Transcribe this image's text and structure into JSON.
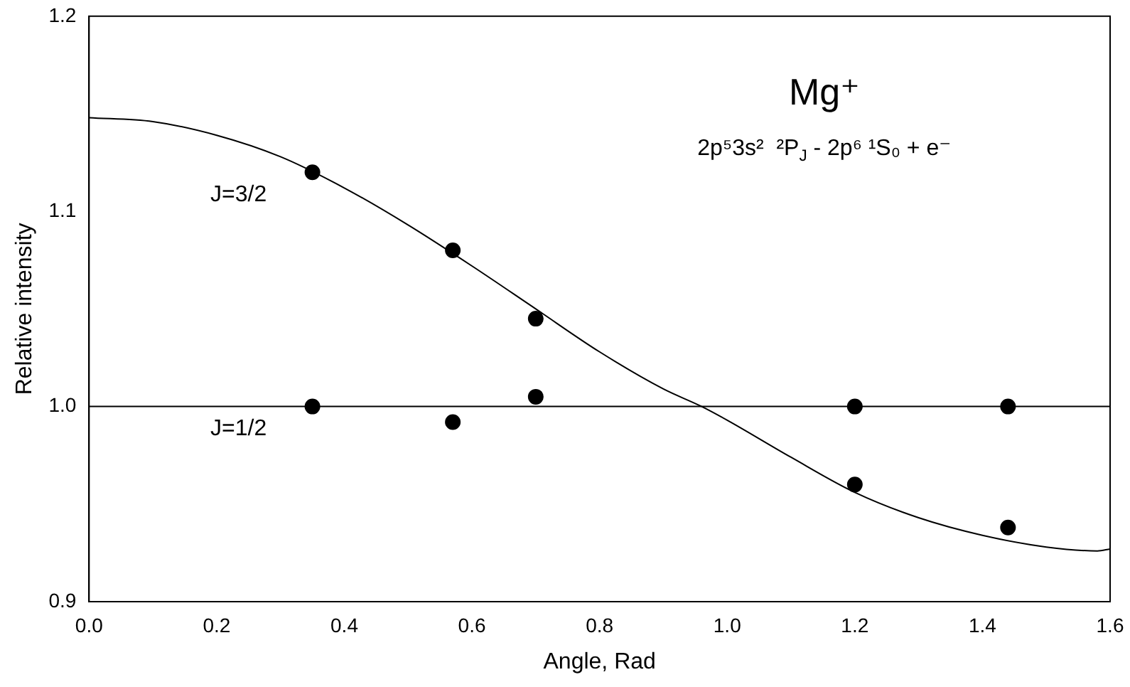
{
  "chart_data": {
    "type": "scatter",
    "xlabel": "Angle, Rad",
    "ylabel": "Relative intensity",
    "annotations": [
      "Mg⁺",
      "2p⁵3s²  ²P$_{J}$ - 2p⁶ ¹S₀ + e⁻"
    ],
    "series": [
      {
        "type": "scatter",
        "name": "J=3/2",
        "marker": "circle",
        "color": "#000000",
        "x": [
          0.35,
          0.57,
          0.7,
          1.2,
          1.44
        ],
        "values": [
          1.12,
          1.08,
          1.045,
          0.96,
          0.938
        ]
      },
      {
        "type": "scatter",
        "name": "J=1/2",
        "marker": "circle",
        "color": "#000000",
        "x": [
          0.35,
          0.57,
          0.7,
          1.2,
          1.44
        ],
        "values": [
          1.0,
          0.992,
          1.005,
          1.0,
          1.0
        ]
      },
      {
        "type": "line",
        "marker": "none",
        "color": "#000000",
        "x": [
          0,
          0.1,
          0.2,
          0.3,
          0.4,
          0.5,
          0.6,
          0.7,
          0.8,
          0.9,
          0.96,
          1.0,
          1.1,
          1.2,
          1.3,
          1.4,
          1.5,
          1.58,
          1.6
        ],
        "values": [
          1.148,
          1.146,
          1.139,
          1.128,
          1.112,
          1.093,
          1.072,
          1.05,
          1.028,
          1.009,
          1.0,
          0.993,
          0.974,
          0.956,
          0.943,
          0.934,
          0.928,
          0.926,
          0.927
        ]
      }
    ],
    "ref_lines": [
      {
        "axis": "y",
        "value": 1.0,
        "color": "#000000"
      }
    ],
    "xlim": [
      0,
      1.6
    ],
    "ylim": [
      0.9,
      1.2
    ],
    "xticks": [
      {
        "value": 0,
        "label": "0.0"
      },
      0.2,
      0.4,
      0.6,
      0.8,
      {
        "value": 1,
        "label": "1.0"
      },
      1.2,
      1.4,
      1.6
    ],
    "yticks": [
      0.9,
      {
        "value": 1,
        "label": "1.0"
      },
      1.1,
      1.2
    ],
    "grid": false,
    "legend": false
  }
}
